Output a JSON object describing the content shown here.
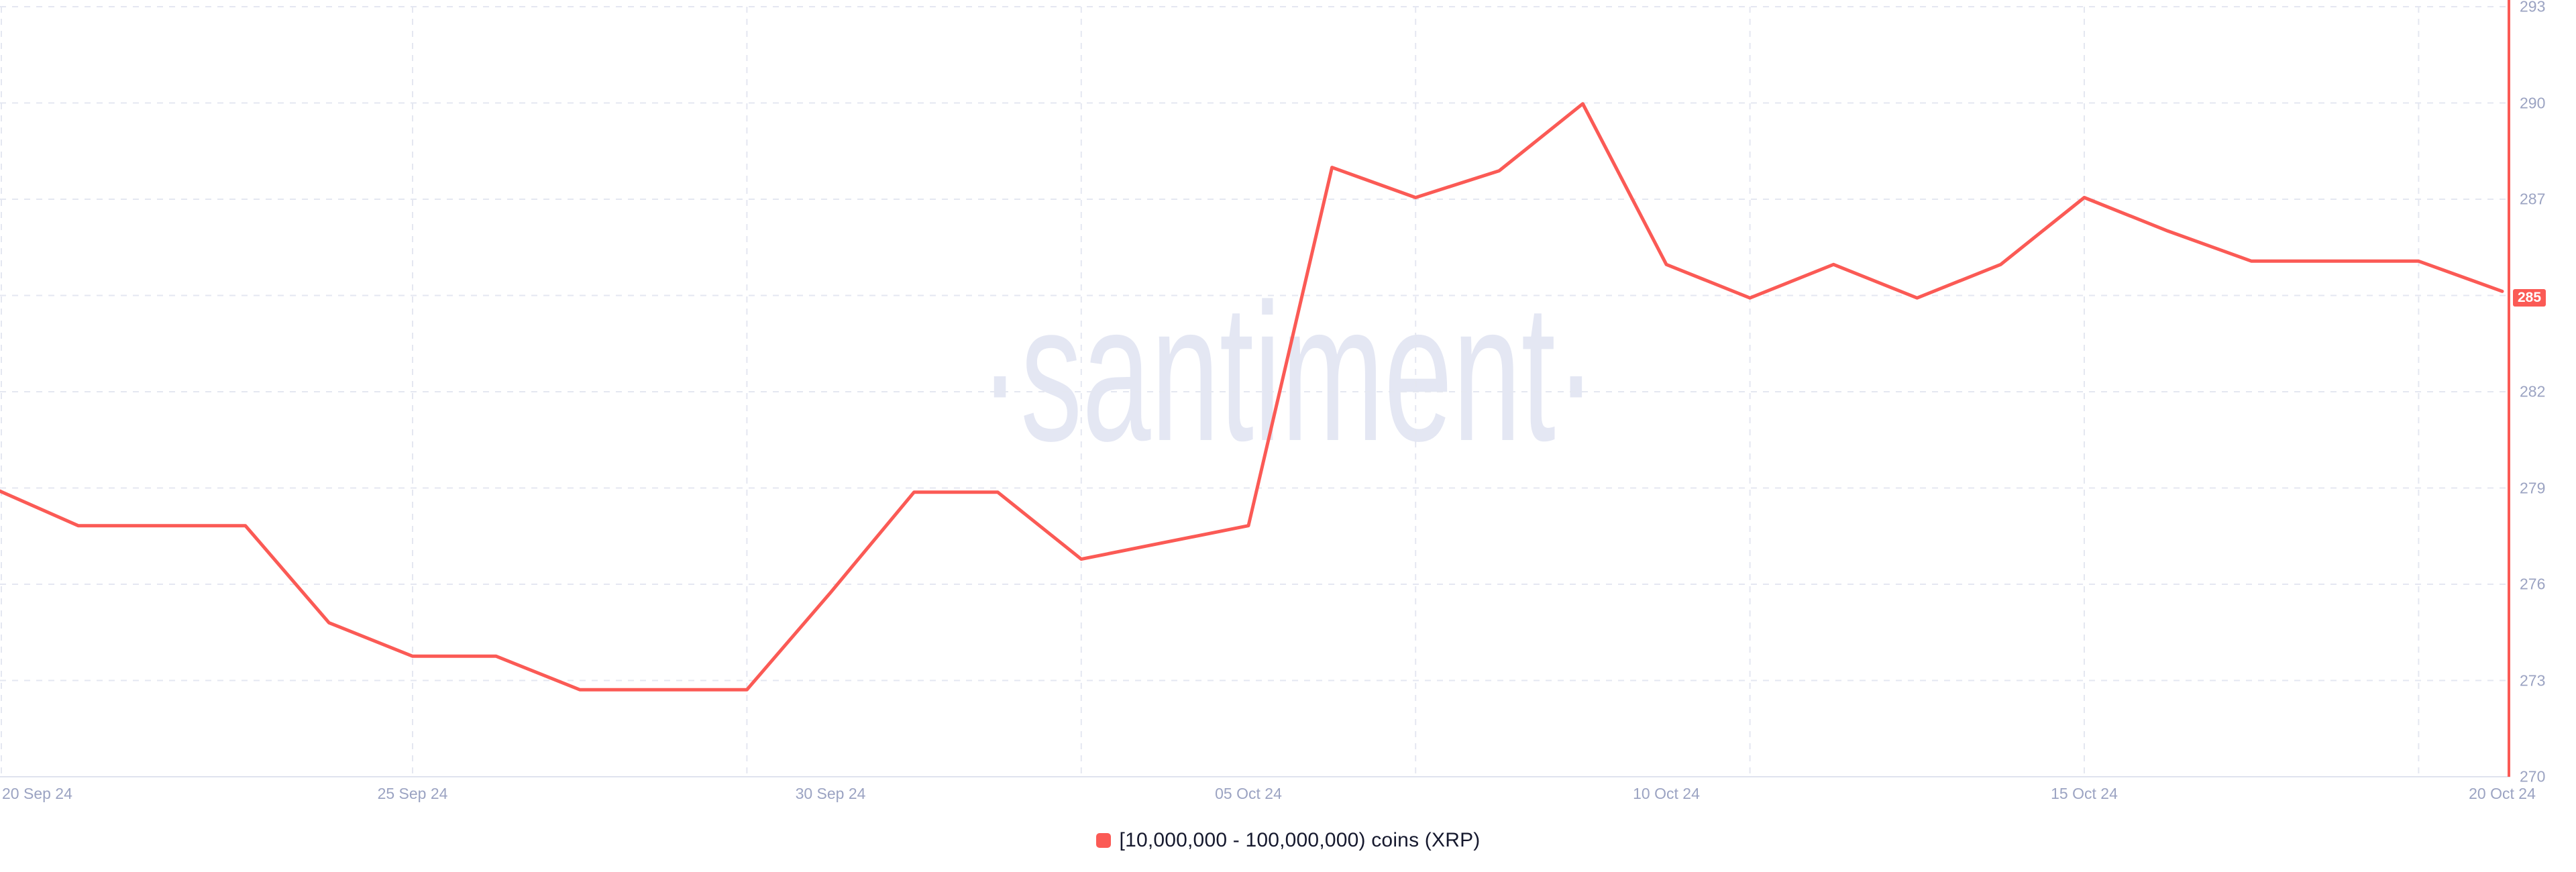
{
  "watermark": "·santiment·",
  "legend": {
    "label": "[10,000,000 - 100,000,000) coins (XRP)",
    "swatch_color": "#fb5a55"
  },
  "badge": {
    "text": "285",
    "bg_color": "#fb5a55",
    "text_color": "#ffffff"
  },
  "colors": {
    "line": "#fb5a55",
    "grid": "#e4e7f1",
    "bottom_axis": "#dfe3ee",
    "right_axis": "#fb5a55",
    "axis_label": "#9ba3c2",
    "legend_text": "#16192e",
    "watermark": "#e4e7f3",
    "background": "#ffffff"
  },
  "chart_data": {
    "type": "line",
    "title": "",
    "series_name": "[10,000,000 - 100,000,000) coins (XRP)",
    "xlabel": "",
    "ylabel": "",
    "ylim": [
      270,
      293
    ],
    "grid": true,
    "legend_position": "bottom",
    "x": [
      "20 Sep 24",
      "21 Sep 24",
      "22 Sep 24",
      "23 Sep 24",
      "24 Sep 24",
      "25 Sep 24",
      "26 Sep 24",
      "27 Sep 24",
      "28 Sep 24",
      "29 Sep 24",
      "30 Sep 24",
      "01 Oct 24",
      "02 Oct 24",
      "03 Oct 24",
      "04 Oct 24",
      "05 Oct 24",
      "06 Oct 24",
      "07 Oct 24",
      "08 Oct 24",
      "09 Oct 24",
      "10 Oct 24",
      "11 Oct 24",
      "12 Oct 24",
      "13 Oct 24",
      "14 Oct 24",
      "15 Oct 24",
      "16 Oct 24",
      "17 Oct 24",
      "18 Oct 24",
      "19 Oct 24",
      "20 Oct 24"
    ],
    "values": [
      278.6,
      277.5,
      277.5,
      277.5,
      274.6,
      273.6,
      273.6,
      272.6,
      272.6,
      272.6,
      275.5,
      278.5,
      278.5,
      276.5,
      277.0,
      277.5,
      288.2,
      287.3,
      288.1,
      290.1,
      285.3,
      284.3,
      285.3,
      284.3,
      285.3,
      287.3,
      286.3,
      285.4,
      285.4,
      285.4,
      284.5
    ],
    "current_value_label": "285",
    "y_ticks": [
      {
        "label": "270",
        "v": 270
      },
      {
        "label": "273",
        "v": 272.875
      },
      {
        "label": "276",
        "v": 275.75
      },
      {
        "label": "279",
        "v": 278.625
      },
      {
        "label": "282",
        "v": 281.5
      },
      {
        "label": "",
        "v": 284.375
      },
      {
        "label": "287",
        "v": 287.25
      },
      {
        "label": "290",
        "v": 290.125
      },
      {
        "label": "293",
        "v": 293
      }
    ],
    "x_tick_labels": [
      {
        "label": "20 Sep 24",
        "day": 0
      },
      {
        "label": "25 Sep 24",
        "day": 5
      },
      {
        "label": "30 Sep 24",
        "day": 10
      },
      {
        "label": "05 Oct 24",
        "day": 15
      },
      {
        "label": "10 Oct 24",
        "day": 20
      },
      {
        "label": "15 Oct 24",
        "day": 25
      },
      {
        "label": "20 Oct 24",
        "day": 30
      }
    ],
    "x_gridline_days": [
      0,
      5,
      9,
      13,
      17,
      21,
      25,
      29
    ]
  }
}
